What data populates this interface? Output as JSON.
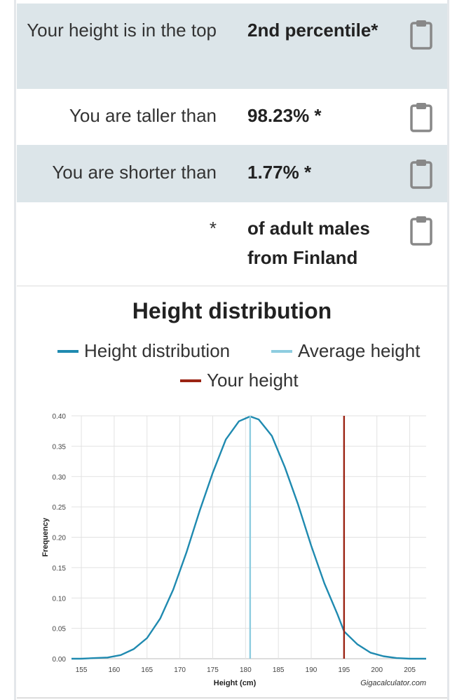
{
  "rows": [
    {
      "label": "Your height is in the top",
      "value": "2nd percentile*"
    },
    {
      "label": "You are taller than",
      "value": "98.23% *"
    },
    {
      "label": "You are shorter than",
      "value": "1.77% *"
    },
    {
      "label": "*",
      "value": "of adult males from Finland"
    }
  ],
  "icons": {
    "clipboard": "clipboard-icon"
  },
  "colors": {
    "row_shade": "#dce5e9",
    "distribution": "#1f8ab0",
    "average": "#8ecde0",
    "your_height": "#9b2414"
  },
  "chart_data": {
    "type": "line",
    "title": "Height distribution",
    "xlabel": "Height (cm)",
    "ylabel": "Frequency",
    "credit": "Gigacalculator.com",
    "xlim": [
      153.5,
      207.5
    ],
    "ylim": [
      0,
      0.4
    ],
    "xticks": [
      155,
      160,
      165,
      170,
      175,
      180,
      185,
      190,
      195,
      200,
      205
    ],
    "yticks": [
      "0.00",
      "0.05",
      "0.10",
      "0.15",
      "0.20",
      "0.25",
      "0.30",
      "0.35",
      "0.40"
    ],
    "legend": [
      "Height distribution",
      "Average height",
      "Your height"
    ],
    "series": [
      {
        "name": "Height distribution",
        "mean": 180.7,
        "peak": 0.399,
        "x": [
          153.5,
          155,
          157,
          159,
          161,
          163,
          165,
          167,
          169,
          171,
          173,
          175,
          177,
          179,
          180.7,
          182,
          184,
          186,
          188,
          190,
          192,
          194,
          195,
          197,
          199,
          201,
          203,
          205,
          207.5
        ],
        "y": [
          0.0,
          0.0,
          0.001,
          0.002,
          0.006,
          0.016,
          0.034,
          0.066,
          0.114,
          0.175,
          0.243,
          0.306,
          0.361,
          0.391,
          0.399,
          0.394,
          0.367,
          0.315,
          0.254,
          0.186,
          0.124,
          0.073,
          0.045,
          0.024,
          0.01,
          0.004,
          0.001,
          0.0,
          0.0
        ]
      },
      {
        "name": "Average height",
        "x": 180.7
      },
      {
        "name": "Your height",
        "x": 195.0
      }
    ]
  }
}
